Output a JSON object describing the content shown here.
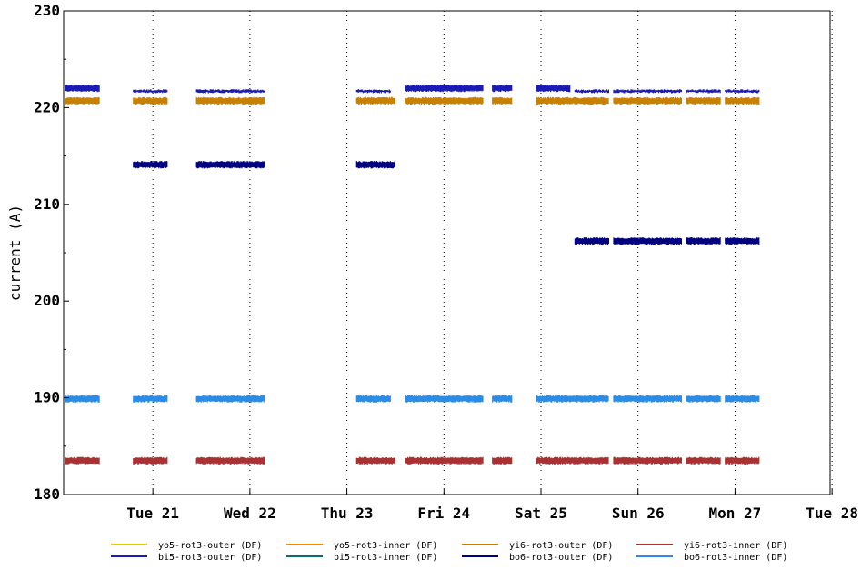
{
  "chart_data": {
    "type": "line",
    "title": "",
    "xlabel": "",
    "ylabel": "current (A)",
    "ylim": [
      180,
      230
    ],
    "y_ticks": [
      "180",
      "190",
      "200",
      "210",
      "220",
      "230"
    ],
    "x_ticks": [
      "Tue 21",
      "Wed 22",
      "Thu 23",
      "Fri 24",
      "Sat 25",
      "Sun 26",
      "Mon 27",
      "Tue 28"
    ],
    "x_range_days": [
      20.08,
      27.98
    ],
    "grid": "vertical dotted at day ticks",
    "legend_position": "bottom",
    "series": [
      {
        "name": "yo5-rot3-outer (DF)",
        "color": "#e8c800",
        "segments": []
      },
      {
        "name": "yo5-rot3-inner (DF)",
        "color": "#f08a00",
        "segments": []
      },
      {
        "name": "yi6-rot3-outer (DF)",
        "color": "#c88000",
        "segments": [
          [
            20.1,
            20.45,
            220.7
          ],
          [
            20.8,
            21.15,
            220.7
          ],
          [
            21.45,
            21.85,
            220.7
          ],
          [
            21.85,
            22.15,
            220.7
          ],
          [
            23.1,
            23.5,
            220.7
          ],
          [
            23.6,
            23.95,
            220.7
          ],
          [
            23.95,
            24.4,
            220.7
          ],
          [
            24.5,
            24.7,
            220.7
          ],
          [
            24.95,
            25.3,
            220.7
          ],
          [
            25.3,
            25.7,
            220.7
          ],
          [
            25.75,
            26.1,
            220.7
          ],
          [
            26.1,
            26.45,
            220.7
          ],
          [
            26.5,
            26.85,
            220.7
          ],
          [
            26.9,
            27.25,
            220.7
          ]
        ]
      },
      {
        "name": "yi6-rot3-inner (DF)",
        "color": "#a83232",
        "segments": [
          [
            20.1,
            20.45,
            183.5
          ],
          [
            20.8,
            21.15,
            183.5
          ],
          [
            21.45,
            21.85,
            183.5
          ],
          [
            21.85,
            22.15,
            183.5
          ],
          [
            23.1,
            23.5,
            183.5
          ],
          [
            23.6,
            23.95,
            183.5
          ],
          [
            23.95,
            24.4,
            183.5
          ],
          [
            24.5,
            24.7,
            183.5
          ],
          [
            24.95,
            25.3,
            183.5
          ],
          [
            25.3,
            25.7,
            183.5
          ],
          [
            25.75,
            26.1,
            183.5
          ],
          [
            26.1,
            26.45,
            183.5
          ],
          [
            26.5,
            26.85,
            183.5
          ],
          [
            26.9,
            27.25,
            183.5
          ]
        ]
      },
      {
        "name": "bi5-rot3-outer (DF)",
        "color": "#1a1ab4",
        "segments": [
          [
            20.1,
            20.45,
            222.0
          ],
          [
            20.8,
            21.15,
            221.7
          ],
          [
            21.45,
            21.85,
            221.7
          ],
          [
            21.85,
            22.15,
            221.7
          ],
          [
            23.1,
            23.45,
            221.7
          ],
          [
            23.6,
            23.95,
            222.0
          ],
          [
            23.95,
            24.4,
            222.0
          ],
          [
            24.5,
            24.7,
            222.0
          ],
          [
            24.95,
            25.3,
            222.0
          ],
          [
            25.35,
            25.7,
            221.7
          ],
          [
            25.75,
            26.1,
            221.7
          ],
          [
            26.1,
            26.45,
            221.7
          ],
          [
            26.5,
            26.85,
            221.7
          ],
          [
            26.9,
            27.25,
            221.7
          ]
        ]
      },
      {
        "name": "bi5-rot3-inner (DF)",
        "color": "#007070",
        "segments": []
      },
      {
        "name": "bo6-rot3-outer (DF)",
        "color": "#000080",
        "segments": [
          [
            20.8,
            21.15,
            214.1
          ],
          [
            21.45,
            21.85,
            214.1
          ],
          [
            21.85,
            22.15,
            214.1
          ],
          [
            23.1,
            23.5,
            214.1
          ],
          [
            25.35,
            25.7,
            206.2
          ],
          [
            25.75,
            26.1,
            206.2
          ],
          [
            26.1,
            26.45,
            206.2
          ],
          [
            26.5,
            26.85,
            206.2
          ],
          [
            26.9,
            27.25,
            206.2
          ]
        ]
      },
      {
        "name": "bo6-rot3-inner (DF)",
        "color": "#2b8ce6",
        "segments": [
          [
            20.1,
            20.45,
            189.9
          ],
          [
            20.8,
            21.15,
            189.9
          ],
          [
            21.45,
            21.85,
            189.9
          ],
          [
            21.85,
            22.15,
            189.9
          ],
          [
            23.1,
            23.45,
            189.9
          ],
          [
            23.6,
            23.95,
            189.9
          ],
          [
            23.95,
            24.4,
            189.9
          ],
          [
            24.5,
            24.7,
            189.9
          ],
          [
            24.95,
            25.3,
            189.9
          ],
          [
            25.3,
            25.7,
            189.9
          ],
          [
            25.75,
            26.1,
            189.9
          ],
          [
            26.1,
            26.45,
            189.9
          ],
          [
            26.5,
            26.85,
            189.9
          ],
          [
            26.9,
            27.25,
            189.9
          ]
        ]
      }
    ]
  }
}
